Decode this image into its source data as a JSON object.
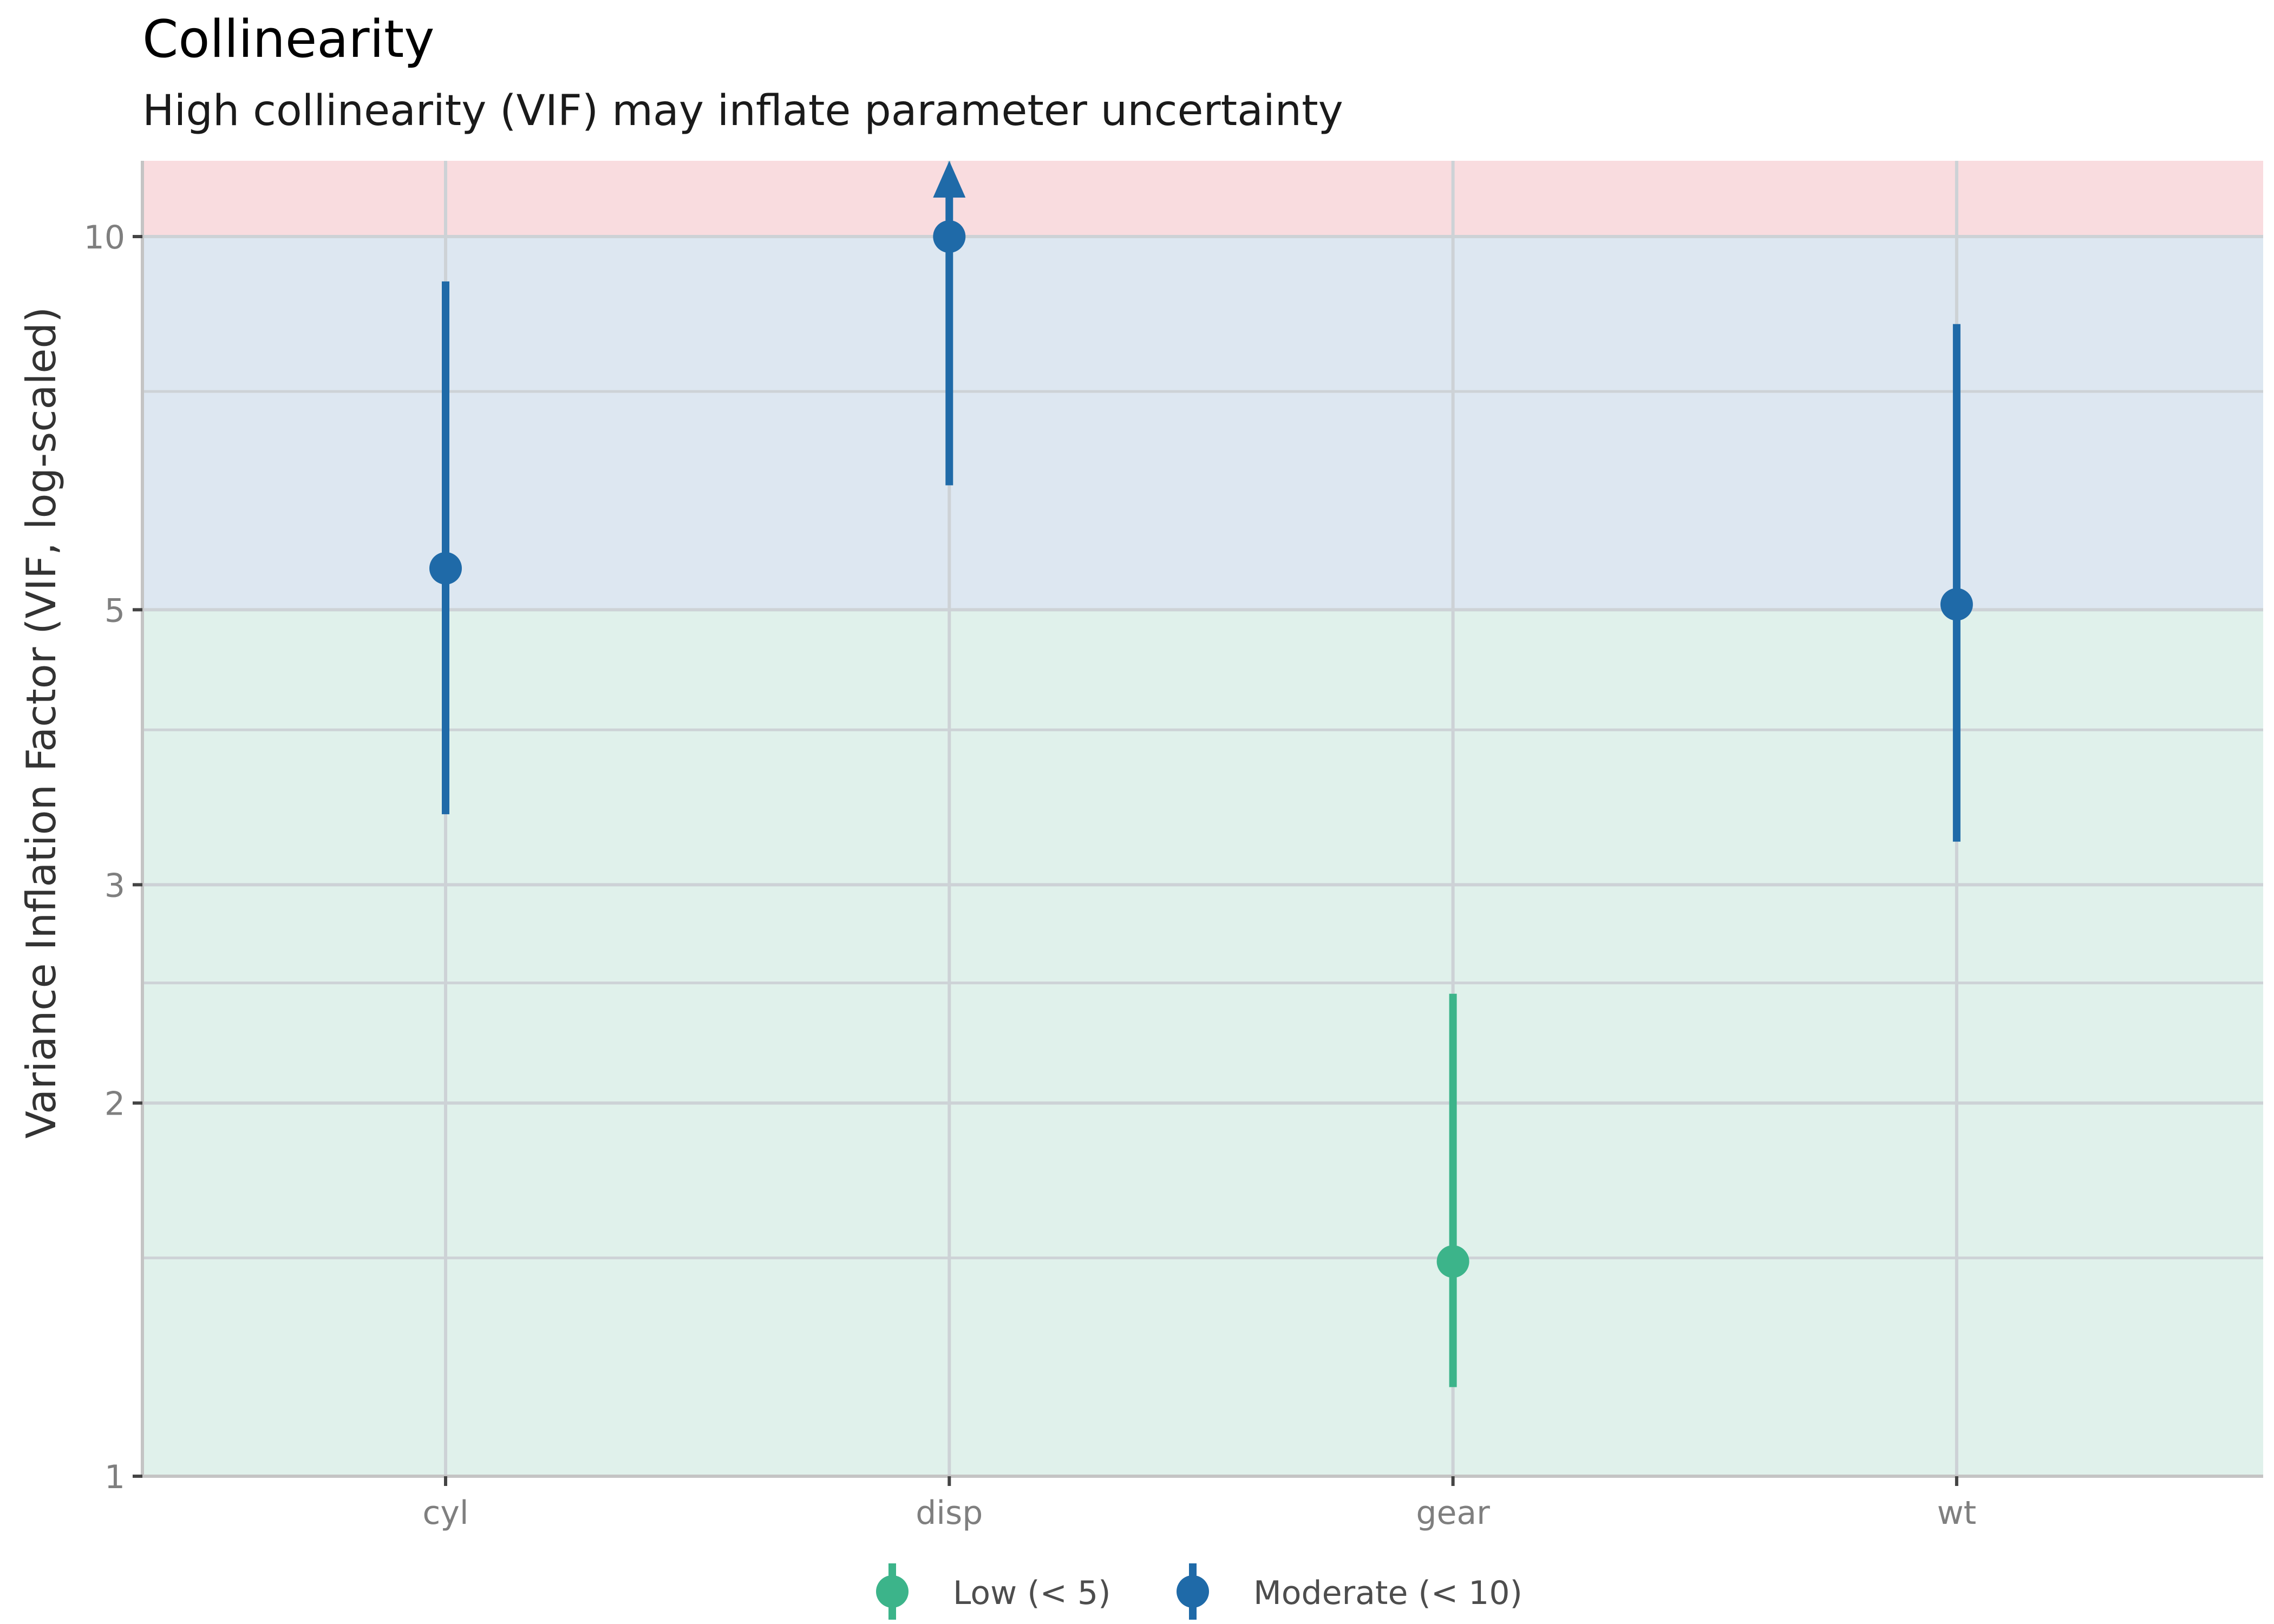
{
  "chart_data": {
    "type": "scatter",
    "title": "Collinearity",
    "subtitle": "High collinearity (VIF) may inflate parameter uncertainty",
    "ylabel": "Variance Inflation Factor (VIF, log-scaled)",
    "xlabel": "",
    "y_scale": "log",
    "ylim": [
      1,
      12.3
    ],
    "categories": [
      "cyl",
      "disp",
      "gear",
      "wt"
    ],
    "y_ticks": [
      1,
      2,
      3,
      5,
      10
    ],
    "y_minor_ticks": [
      1.5,
      2.5,
      4,
      7.5
    ],
    "bands": [
      {
        "name": "low",
        "from": 1,
        "to": 5,
        "color": "#e0f1eb"
      },
      {
        "name": "moderate",
        "from": 5,
        "to": 10,
        "color": "#dde7f1"
      },
      {
        "name": "high",
        "from": 10,
        "to": 12.3,
        "color": "#f9dcdf"
      }
    ],
    "points": [
      {
        "category": "cyl",
        "vif": 5.4,
        "ci_low": 3.42,
        "ci_high": 9.2,
        "group": "Moderate (< 10)",
        "arrow_up": false
      },
      {
        "category": "disp",
        "vif": 10.0,
        "ci_low": 6.3,
        "ci_high": 12.3,
        "group": "Moderate (< 10)",
        "arrow_up": true
      },
      {
        "category": "gear",
        "vif": 1.49,
        "ci_low": 1.18,
        "ci_high": 2.45,
        "group": "Low (< 5)",
        "arrow_up": false
      },
      {
        "category": "wt",
        "vif": 5.05,
        "ci_low": 3.25,
        "ci_high": 8.5,
        "group": "Moderate (< 10)",
        "arrow_up": false
      }
    ],
    "legend": {
      "position": "bottom",
      "entries": [
        {
          "label": "Low (< 5)",
          "color": "#3cb48a"
        },
        {
          "label": "Moderate (< 10)",
          "color": "#1f6aa8"
        }
      ]
    },
    "colors": {
      "low": "#3cb48a",
      "moderate": "#1f6aa8",
      "grid": "#cdd2d6",
      "axis_text": "#7f7f7f"
    },
    "grid": true
  }
}
